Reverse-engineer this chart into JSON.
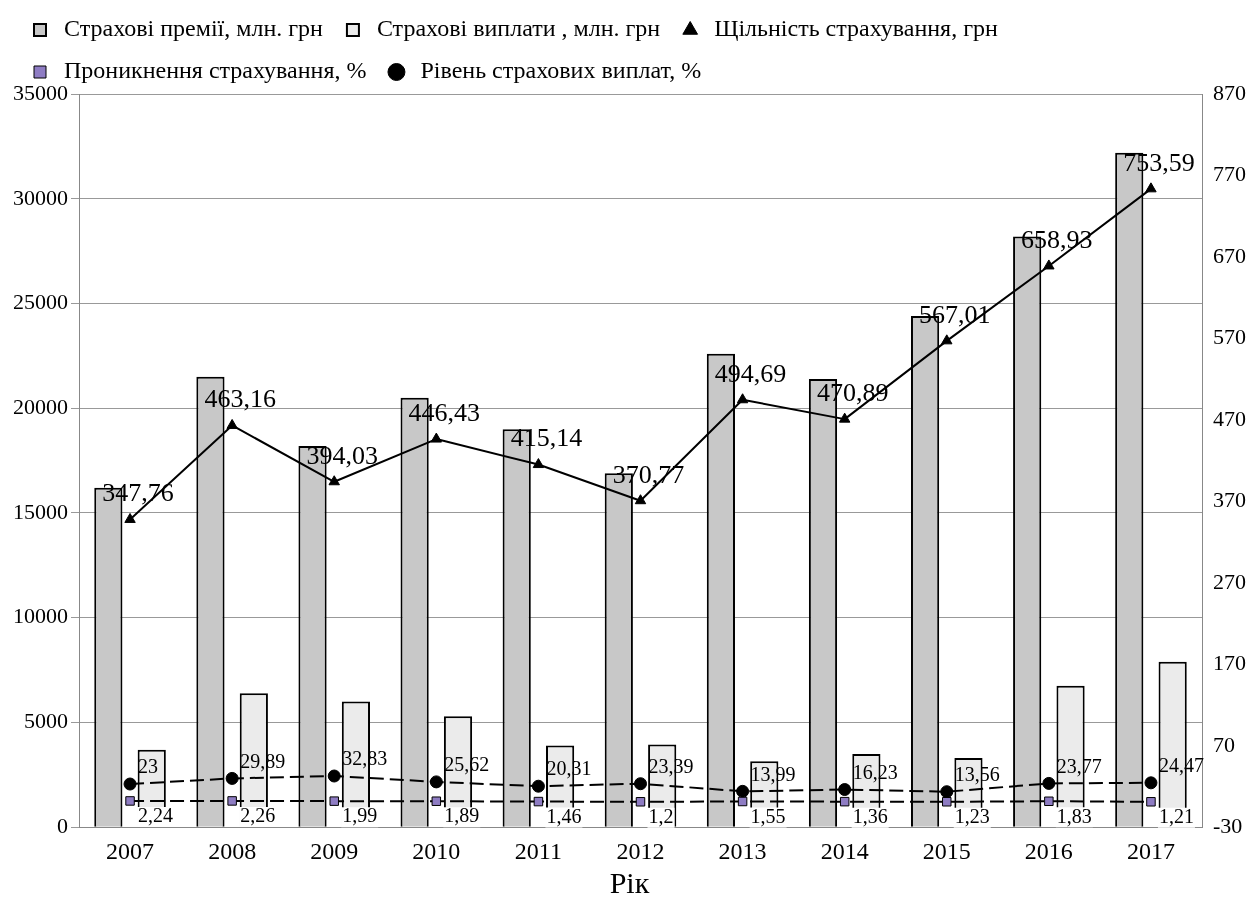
{
  "chart_data": {
    "type": "bar",
    "xlabel": "Рік",
    "categories": [
      "2007",
      "2008",
      "2009",
      "2010",
      "2011",
      "2012",
      "2013",
      "2014",
      "2015",
      "2016",
      "2017"
    ],
    "series": [
      {
        "name": "Страхові премії, млн. грн",
        "color": "#c8c8c8",
        "values": [
          16200,
          21500,
          18200,
          20500,
          19000,
          16900,
          22600,
          21400,
          24400,
          28200,
          32200
        ]
      },
      {
        "name": "Страхові виплати , млн. грн",
        "color": "#ebebeb",
        "values": [
          3700,
          6400,
          6000,
          5300,
          3900,
          3950,
          3150,
          3500,
          3300,
          6750,
          7900
        ]
      },
      {
        "name": "Щільність страхування, грн",
        "type": "line",
        "axis": "y2",
        "color": "#000000",
        "marker": "triangle",
        "line_style": "solid",
        "values": [
          347.76,
          463.16,
          394.03,
          446.43,
          415.14,
          370.77,
          494.69,
          470.89,
          567.01,
          658.93,
          753.59
        ],
        "value_labels": [
          "347,76",
          "463,16",
          "394,03",
          "446,43",
          "415,14",
          "370,77",
          "494,69",
          "470,89",
          "567,01",
          "658,93",
          "753,59"
        ]
      },
      {
        "name": "Проникнення страхування, %",
        "type": "line",
        "axis": "y2",
        "color": "#8e7cc3",
        "marker": "square",
        "line_style": "dashed",
        "values": [
          2.24,
          2.26,
          1.99,
          1.89,
          1.46,
          1.2,
          1.55,
          1.36,
          1.23,
          1.83,
          1.21
        ],
        "value_labels": [
          "2,24",
          "2,26",
          "1,99",
          "1,89",
          "1,46",
          "1,2",
          "1,55",
          "1,36",
          "1,23",
          "1,83",
          "1,21"
        ]
      },
      {
        "name": "Рівень страхових виплат, %",
        "type": "line",
        "axis": "y2",
        "color": "#000000",
        "marker": "circle",
        "line_style": "dashed",
        "values": [
          23,
          29.89,
          32.83,
          25.62,
          20.31,
          23.39,
          13.99,
          16.23,
          13.56,
          23.77,
          24.47
        ],
        "value_labels": [
          "23",
          "29,89",
          "32,83",
          "25,62",
          "20,31",
          "23,39",
          "13,99",
          "16,23",
          "13,56",
          "23,77",
          "24,47"
        ]
      }
    ],
    "ylim": [
      0,
      35000
    ],
    "yticks": [
      0,
      5000,
      10000,
      15000,
      20000,
      25000,
      30000,
      35000
    ],
    "y2lim": [
      -30,
      870
    ],
    "y2ticks": [
      -30,
      70,
      170,
      270,
      370,
      470,
      570,
      670,
      770,
      870
    ],
    "grid": "y",
    "legend": "top"
  }
}
